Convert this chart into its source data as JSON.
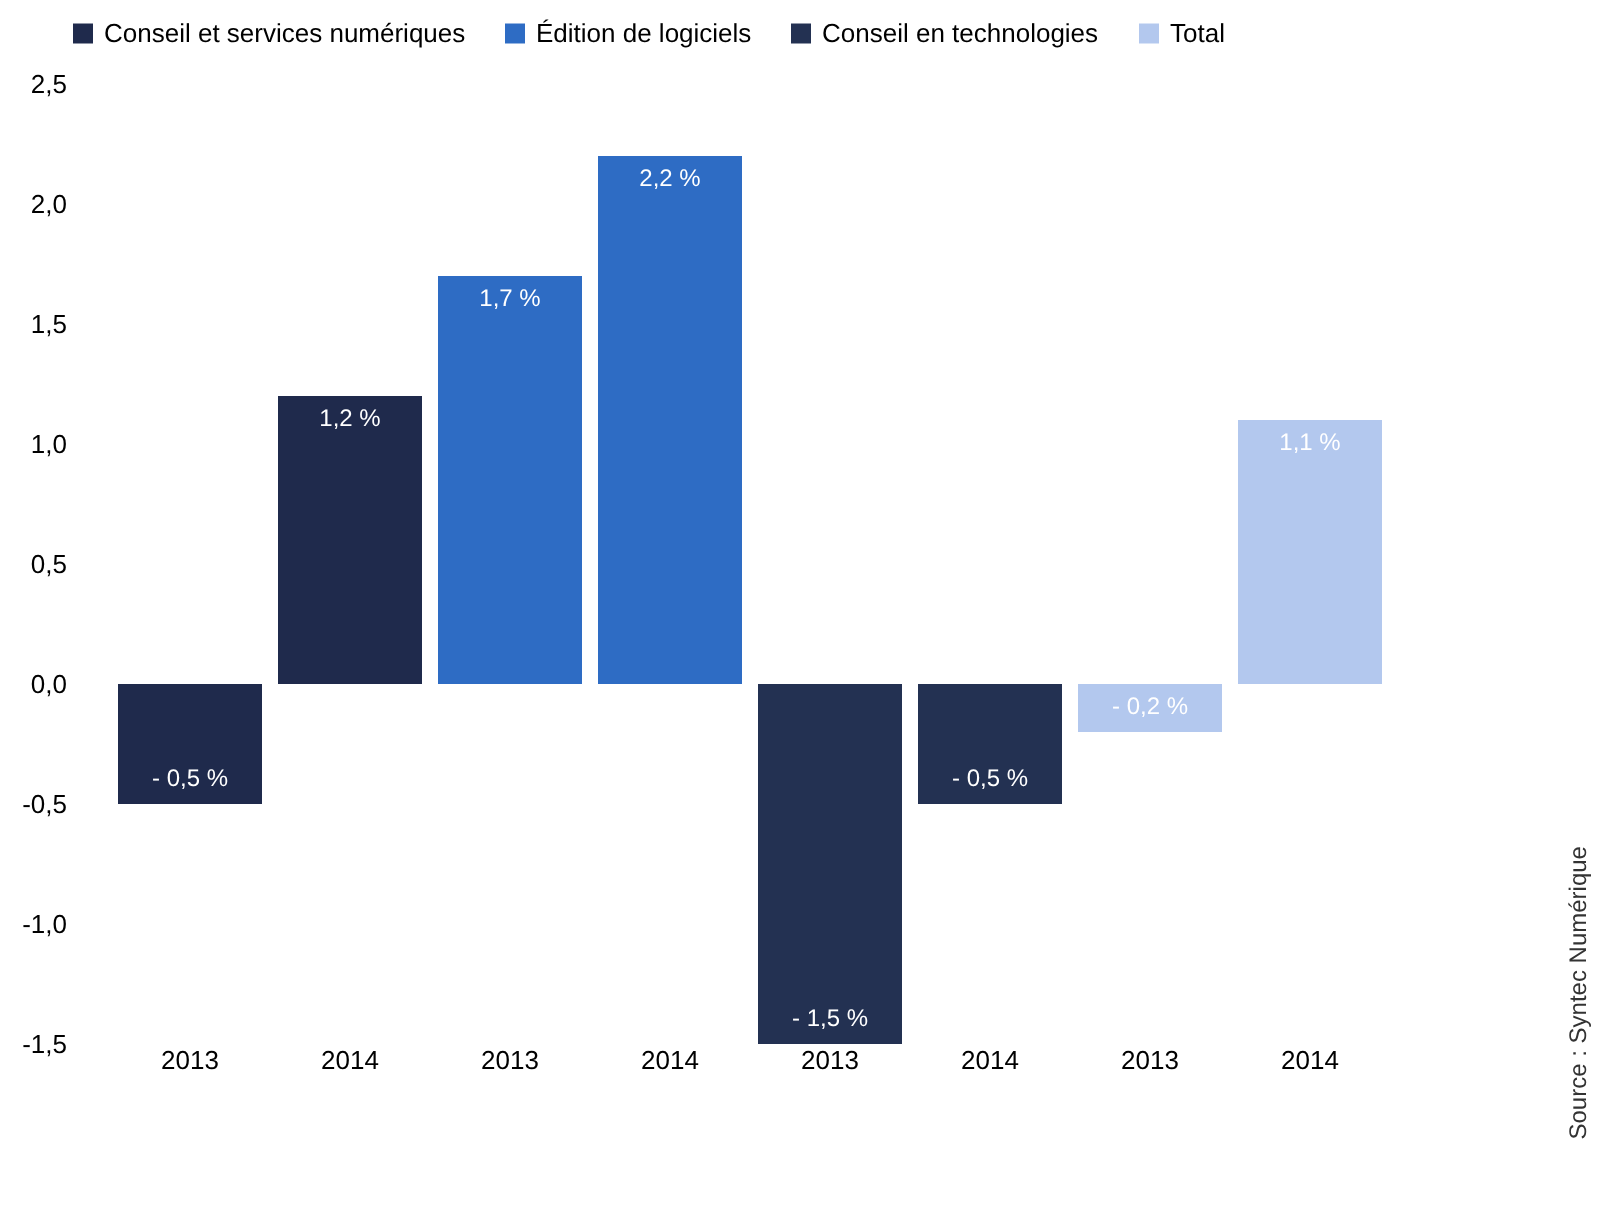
{
  "chart_data": {
    "type": "bar",
    "categories": [
      "2013",
      "2014",
      "2013",
      "2014",
      "2013",
      "2014",
      "2013",
      "2014"
    ],
    "series": [
      {
        "name": "Conseil et services numériques",
        "color": "#1f2a4c",
        "values": [
          -0.5,
          1.2,
          null,
          null,
          null,
          null,
          null,
          null
        ],
        "value_labels": [
          "- 0,5 %",
          "1,2 %",
          null,
          null,
          null,
          null,
          null,
          null
        ]
      },
      {
        "name": "Édition de logiciels",
        "color": "#2e6cc4",
        "values": [
          null,
          null,
          1.7,
          2.2,
          null,
          null,
          null,
          null
        ],
        "value_labels": [
          null,
          null,
          "1,7 %",
          "2,2 %",
          null,
          null,
          null,
          null
        ]
      },
      {
        "name": "Conseil en technologies",
        "color": "#233152",
        "values": [
          null,
          null,
          null,
          null,
          -1.5,
          -0.5,
          null,
          null
        ],
        "value_labels": [
          null,
          null,
          null,
          null,
          "- 1,5 %",
          "- 0,5 %",
          null,
          null
        ]
      },
      {
        "name": "Total",
        "color": "#b3c8ee",
        "values": [
          null,
          null,
          null,
          null,
          null,
          null,
          -0.2,
          1.1
        ],
        "value_labels": [
          null,
          null,
          null,
          null,
          null,
          null,
          "- 0,2 %",
          "1,1 %"
        ]
      }
    ],
    "ylim": [
      -1.5,
      2.5
    ],
    "yticks": [
      {
        "value": -1.5,
        "label": "-1,5"
      },
      {
        "value": -1.0,
        "label": "-1,0"
      },
      {
        "value": -0.5,
        "label": "-0,5"
      },
      {
        "value": 0,
        "label": "0,0"
      },
      {
        "value": 0.5,
        "label": "0,5"
      },
      {
        "value": 1.0,
        "label": "1,0"
      },
      {
        "value": 1.5,
        "label": "1,5"
      },
      {
        "value": 2.0,
        "label": "2,0"
      },
      {
        "value": 2.5,
        "label": "2,5"
      }
    ],
    "legend": "top left",
    "annotations": [
      "Source : Syntec Numérique"
    ]
  }
}
